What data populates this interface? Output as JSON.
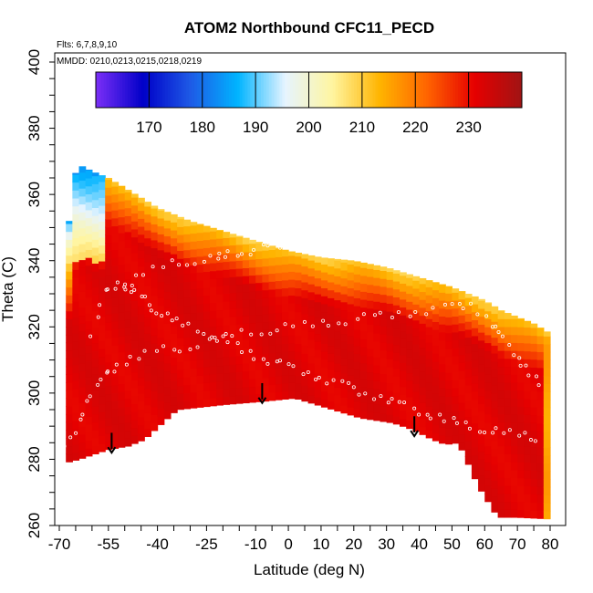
{
  "chart_data": {
    "type": "heatmap",
    "title": "ATOM2 Northbound CFC11_PECD",
    "annotations": [
      "Flts: 6,7,8,9,10",
      "MMDD: 0210,0213,0215,0218,0219"
    ],
    "xlabel": "Latitude (deg N)",
    "ylabel": "Theta (C)",
    "xlim": [
      -70,
      80
    ],
    "ylim": [
      260,
      400
    ],
    "x_ticks": [
      -70,
      -55,
      -40,
      -25,
      -10,
      0,
      10,
      20,
      30,
      40,
      50,
      60,
      70,
      80
    ],
    "y_ticks": [
      260,
      280,
      300,
      320,
      340,
      360,
      380,
      400
    ],
    "colorbar": {
      "range": [
        160,
        240
      ],
      "ticks": [
        170,
        180,
        190,
        200,
        210,
        220,
        230
      ],
      "colors": [
        "#7b2ff7",
        "#0000c8",
        "#1e5ae6",
        "#00b4ff",
        "#e6f4ff",
        "#fff5a0",
        "#ffb400",
        "#ff6400",
        "#e60000",
        "#a01414"
      ]
    },
    "field": {
      "description_levels": "upper envelope theta by latitude; lower envelope theta by latitude",
      "upper_envelope": [
        [
          -68,
          340
        ],
        [
          -66,
          364
        ],
        [
          -64,
          369
        ],
        [
          -60,
          367
        ],
        [
          -55,
          365
        ],
        [
          -50,
          362
        ],
        [
          -40,
          356
        ],
        [
          -30,
          352
        ],
        [
          -20,
          349
        ],
        [
          -10,
          346
        ],
        [
          0,
          343
        ],
        [
          10,
          341
        ],
        [
          20,
          340
        ],
        [
          30,
          338
        ],
        [
          40,
          335
        ],
        [
          50,
          332
        ],
        [
          60,
          328
        ],
        [
          65,
          325
        ],
        [
          70,
          323
        ],
        [
          75,
          321
        ],
        [
          80,
          318
        ]
      ],
      "lower_envelope": [
        [
          -68,
          279
        ],
        [
          -64,
          280
        ],
        [
          -55,
          283
        ],
        [
          -49,
          284
        ],
        [
          -44,
          286
        ],
        [
          -34,
          295
        ],
        [
          -20,
          296.5
        ],
        [
          -8,
          297.5
        ],
        [
          2,
          298.5
        ],
        [
          12,
          295.5
        ],
        [
          22,
          292.5
        ],
        [
          32,
          291
        ],
        [
          38,
          289
        ],
        [
          44,
          286
        ],
        [
          48,
          284.5
        ],
        [
          52,
          285
        ],
        [
          58,
          272
        ],
        [
          64,
          262.5
        ],
        [
          70,
          262.5
        ],
        [
          80,
          262
        ]
      ],
      "core_value": 232,
      "edge_value": 200
    },
    "flight_paths": [
      {
        "points": [
          [
            -50,
            332
          ],
          [
            -44,
            336
          ],
          [
            -36,
            339
          ],
          [
            -28,
            340
          ],
          [
            -22,
            340.5
          ],
          [
            -18,
            342
          ],
          [
            -12,
            343
          ],
          [
            -6,
            344
          ],
          [
            0,
            345
          ],
          [
            6,
            344.5
          ],
          [
            12,
            344
          ],
          [
            18,
            343.5
          ],
          [
            24,
            343
          ],
          [
            30,
            342
          ]
        ]
      },
      {
        "points": [
          [
            -60,
            318
          ],
          [
            -56,
            330
          ],
          [
            -52,
            334
          ],
          [
            -48,
            331
          ],
          [
            -44,
            328
          ],
          [
            -40,
            325
          ],
          [
            -36,
            322
          ],
          [
            -30,
            320
          ],
          [
            -24,
            318
          ],
          [
            -18,
            315
          ],
          [
            -12,
            312
          ],
          [
            -6,
            310
          ],
          [
            0,
            308
          ],
          [
            6,
            306
          ],
          [
            12,
            304
          ],
          [
            18,
            302
          ],
          [
            24,
            300
          ],
          [
            30,
            298
          ],
          [
            36,
            296
          ],
          [
            42,
            294
          ],
          [
            48,
            292
          ],
          [
            54,
            290
          ],
          [
            60,
            289
          ],
          [
            66,
            288
          ],
          [
            72,
            287
          ],
          [
            78,
            286
          ]
        ]
      },
      {
        "points": [
          [
            -68,
            283
          ],
          [
            -64,
            292
          ],
          [
            -60,
            300
          ],
          [
            -56,
            305
          ],
          [
            -52,
            309
          ],
          [
            -46,
            311
          ],
          [
            -38,
            313
          ],
          [
            -30,
            314
          ],
          [
            -22,
            316
          ],
          [
            -14,
            318
          ],
          [
            -6,
            319
          ],
          [
            2,
            320
          ],
          [
            10,
            321
          ],
          [
            18,
            322
          ],
          [
            26,
            323
          ],
          [
            34,
            324
          ],
          [
            42,
            325
          ],
          [
            50,
            326
          ],
          [
            56,
            327
          ],
          [
            62,
            321
          ],
          [
            66,
            316
          ],
          [
            70,
            311
          ],
          [
            74,
            306
          ],
          [
            78,
            300
          ]
        ]
      }
    ],
    "arrows": [
      {
        "lat": -54,
        "theta_top": 288,
        "theta_bottom": 282
      },
      {
        "lat": -8,
        "theta_top": 303,
        "theta_bottom": 297
      },
      {
        "lat": 38.5,
        "theta_top": 293,
        "theta_bottom": 287
      }
    ]
  }
}
